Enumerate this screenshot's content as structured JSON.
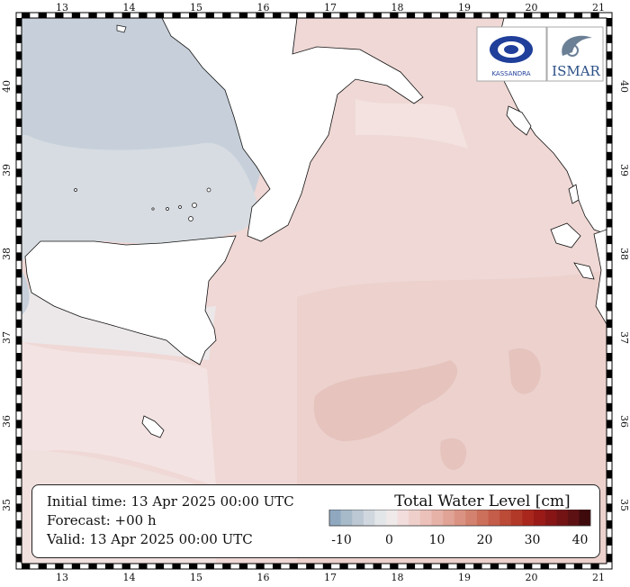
{
  "map": {
    "lon_ticks": [
      "13",
      "14",
      "15",
      "16",
      "17",
      "18",
      "19",
      "20",
      "21"
    ],
    "lat_ticks": [
      "35",
      "36",
      "37",
      "38",
      "39",
      "40"
    ]
  },
  "info": {
    "initial_time": "Initial time: 13 Apr 2025 00:00 UTC",
    "forecast": "Forecast: +00 h",
    "valid": "Valid: 13 Apr 2025 00:00 UTC"
  },
  "legend": {
    "title": "Total Water Level [cm]",
    "labels": [
      "-10",
      "0",
      "10",
      "20",
      "30",
      "40"
    ],
    "colors": [
      "#8fa8c0",
      "#a7bac9",
      "#bcc8d3",
      "#d0d7de",
      "#e3e6e8",
      "#efe9e9",
      "#f2dcdc",
      "#efcfca",
      "#ebc1ba",
      "#e6b2a8",
      "#e0a395",
      "#da9382",
      "#d3826f",
      "#cc705c",
      "#c45d49",
      "#bb4a37",
      "#b23828",
      "#a8261c",
      "#9a1a17",
      "#871516",
      "#741314",
      "#5e1113",
      "#3f0a0c"
    ]
  },
  "logos": {
    "left_text": "KASSANDRA",
    "right_text": "ISMAR"
  }
}
